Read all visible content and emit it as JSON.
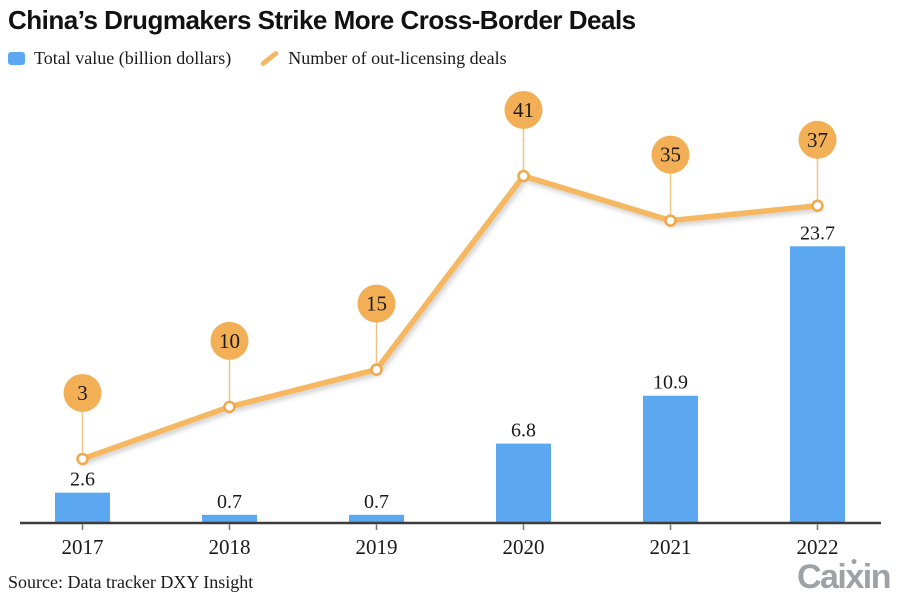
{
  "title": "China’s Drugmakers Strike More Cross-Border Deals",
  "legend": {
    "items": [
      {
        "label": "Total value (billion dollars)",
        "color": "#5BA7F0"
      },
      {
        "label": "Number of out-licensing deals",
        "color": "#F5B761"
      }
    ]
  },
  "chart_data": {
    "type": "bar+line combo",
    "categories": [
      "2017",
      "2018",
      "2019",
      "2020",
      "2021",
      "2022"
    ],
    "series": [
      {
        "name": "Total value (billion dollars)",
        "type": "bar",
        "color": "#5BA7F0",
        "values": [
          2.6,
          0.7,
          0.7,
          6.8,
          10.9,
          23.7
        ],
        "labels": [
          "2.6",
          "0.7",
          "0.7",
          "6.8",
          "10.9",
          "23.7"
        ]
      },
      {
        "name": "Number of out-licensing deals",
        "type": "line",
        "color": "#F5B761",
        "bubble_color": "#F2AF55",
        "stem_color": "#F0C484",
        "values": [
          3,
          10,
          15,
          41,
          35,
          37
        ],
        "labels": [
          "3",
          "10",
          "15",
          "41",
          "35",
          "37"
        ]
      }
    ],
    "ylim_bar": [
      0,
      26
    ],
    "ylim_line": [
      0,
      45
    ],
    "grid": false,
    "legend_position": "top-left",
    "axis_color": "#3c3c3c",
    "text_color": "#1a1a1a",
    "bubble_text_color": "#2e2414"
  },
  "source": "Source: Data tracker DXY Insight",
  "logo": {
    "part1": "Cai",
    "part2": "x",
    "part3": "in",
    "color": "#9DA2A7"
  }
}
